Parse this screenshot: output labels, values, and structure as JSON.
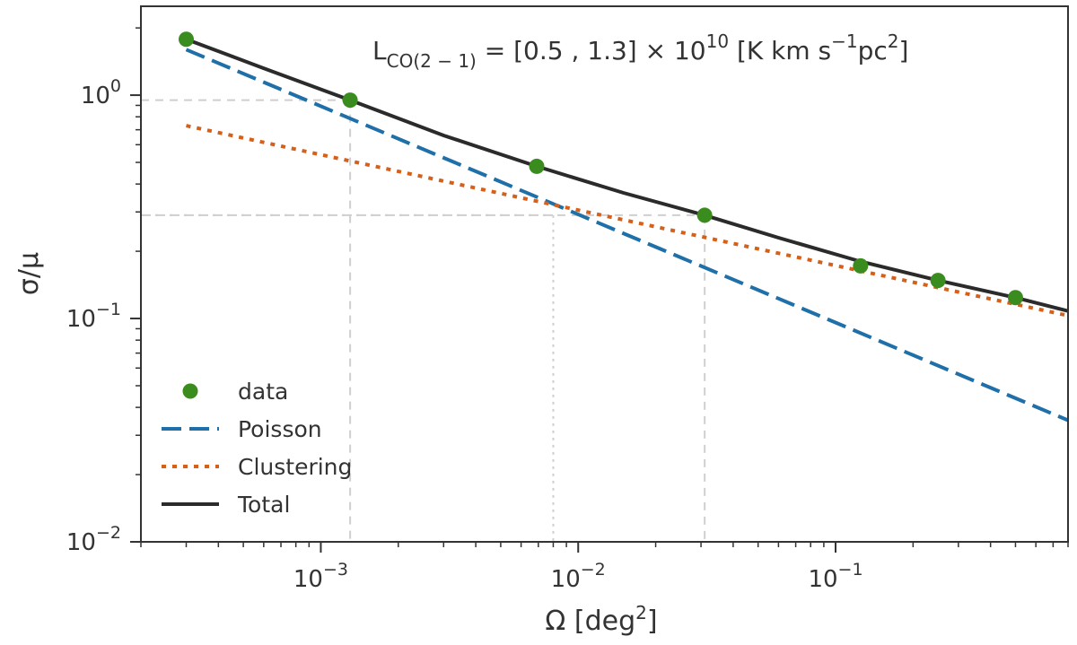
{
  "chart_data": {
    "type": "line",
    "xscale": "log",
    "yscale": "log",
    "xlim": [
      0.0002,
      0.8
    ],
    "ylim": [
      0.01,
      2.5
    ],
    "grid": false,
    "legend_position": "lower-left",
    "xlabel": "Ω [deg",
    "xlabel_sup": "2",
    "xlabel_suffix": "]",
    "ylabel": "σ/μ",
    "x_ticks": [
      {
        "value": 0.001,
        "base": "10",
        "exp": "−3"
      },
      {
        "value": 0.01,
        "base": "10",
        "exp": "−2"
      },
      {
        "value": 0.1,
        "base": "10",
        "exp": "−1"
      }
    ],
    "y_ticks": [
      {
        "value": 1,
        "base": "10",
        "exp": "0"
      },
      {
        "value": 0.1,
        "base": "10",
        "exp": "−1"
      },
      {
        "value": 0.01,
        "base": "10",
        "exp": "−2"
      }
    ],
    "annotation": {
      "prefix": "L",
      "subscript": "CO(2 − 1)",
      "middle": " = [0.5 , 1.3] × 10",
      "exponent": "10",
      "unit_start": " [K km s",
      "unit_exp": "−1",
      "unit_mid": "pc",
      "unit_exp2": "2",
      "unit_end": "]"
    },
    "series": [
      {
        "name": "data",
        "style": "markers",
        "color": "#3a8c1f",
        "x": [
          0.0003,
          0.0013,
          0.0069,
          0.031,
          0.125,
          0.25,
          0.5
        ],
        "y": [
          1.78,
          0.95,
          0.48,
          0.29,
          0.172,
          0.148,
          0.124
        ]
      },
      {
        "name": "Poisson",
        "style": "dashed",
        "color": "#1f6fa8",
        "x": [
          0.0003,
          0.8
        ],
        "y": [
          1.6,
          0.035
        ]
      },
      {
        "name": "Clustering",
        "style": "dotted",
        "color": "#d4601a",
        "x": [
          0.0003,
          0.8
        ],
        "y": [
          0.73,
          0.103
        ]
      },
      {
        "name": "Total",
        "style": "solid",
        "color": "#2b2b2b",
        "x": [
          0.0003,
          0.0006,
          0.0013,
          0.003,
          0.0069,
          0.015,
          0.031,
          0.06,
          0.125,
          0.25,
          0.5,
          0.8
        ],
        "y": [
          1.78,
          1.32,
          0.95,
          0.66,
          0.48,
          0.365,
          0.29,
          0.23,
          0.18,
          0.148,
          0.124,
          0.108
        ]
      }
    ],
    "reference_lines": [
      {
        "style": "dashed",
        "x": 0.0013,
        "y": 0.95
      },
      {
        "style": "dotted",
        "x": 0.008,
        "y": 0.29
      },
      {
        "style": "dashed",
        "x": 0.031,
        "y": 0.29
      }
    ]
  }
}
